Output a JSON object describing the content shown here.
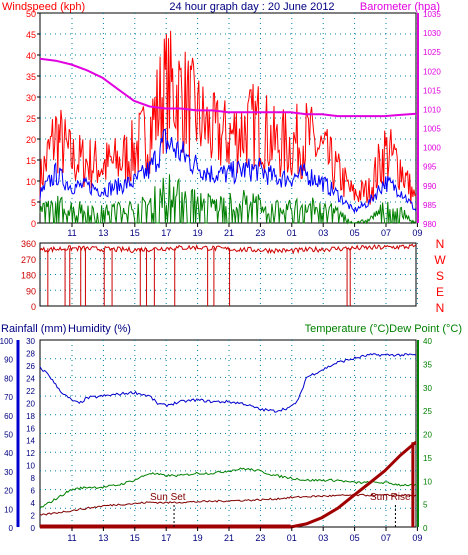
{
  "chart_data": [
    {
      "type": "line",
      "title": "24 hour graph day : 20 June 2012",
      "ylabel": "Windspeed (kph)",
      "y2label": "Barometer (hpa)",
      "x_ticks": [
        "11",
        "13",
        "15",
        "17",
        "19",
        "21",
        "23",
        "01",
        "03",
        "05",
        "07",
        "09"
      ],
      "ylim": [
        0,
        50
      ],
      "y_ticks": [
        0,
        5,
        10,
        15,
        20,
        25,
        30,
        35,
        40,
        45,
        50
      ],
      "y2lim": [
        980,
        1035
      ],
      "y2_ticks": [
        980,
        985,
        990,
        995,
        1000,
        1005,
        1010,
        1015,
        1020,
        1025,
        1030,
        1035
      ],
      "colors": {
        "gust": "#ff0000",
        "avg": "#0000ff",
        "min": "#008000",
        "baro": "#e000e0"
      },
      "series": [
        {
          "key": "gust",
          "x": [
            0,
            1,
            2,
            3,
            4,
            5,
            6,
            7,
            8,
            9,
            10,
            11,
            12,
            13,
            14,
            15,
            16,
            17,
            18,
            19,
            20,
            21,
            22,
            23,
            24
          ],
          "values": [
            12,
            25,
            18,
            17,
            16,
            17,
            20,
            26,
            38,
            36,
            30,
            25,
            24,
            26,
            28,
            22,
            22,
            24,
            20,
            14,
            8,
            9,
            20,
            16,
            6
          ]
        },
        {
          "key": "avg",
          "x": [
            0,
            1,
            2,
            3,
            4,
            5,
            6,
            7,
            8,
            9,
            10,
            11,
            12,
            13,
            14,
            15,
            16,
            17,
            18,
            19,
            20,
            21,
            22,
            23,
            24
          ],
          "values": [
            7,
            12,
            9,
            9,
            8,
            9,
            10,
            13,
            20,
            17,
            14,
            12,
            12,
            13,
            13,
            11,
            11,
            12,
            10,
            7,
            3,
            5,
            10,
            8,
            3
          ]
        },
        {
          "key": "min",
          "x": [
            0,
            1,
            2,
            3,
            4,
            5,
            6,
            7,
            8,
            9,
            10,
            11,
            12,
            13,
            14,
            15,
            16,
            17,
            18,
            19,
            20,
            21,
            22,
            23,
            24
          ],
          "values": [
            3,
            5,
            4,
            4,
            3,
            4,
            4,
            5,
            9,
            8,
            6,
            5,
            5,
            6,
            5,
            4,
            4,
            5,
            4,
            3,
            0,
            1,
            4,
            3,
            0
          ]
        },
        {
          "key": "baro",
          "axis": "y2",
          "x": [
            0,
            1,
            2,
            3,
            4,
            5,
            6,
            7,
            8,
            9,
            10,
            11,
            12,
            13,
            14,
            15,
            16,
            17,
            18,
            19,
            20,
            21,
            22,
            23,
            24
          ],
          "values": [
            1023,
            1022.5,
            1021.5,
            1020,
            1018,
            1015,
            1012,
            1010.5,
            1010,
            1010,
            1009.5,
            1009.5,
            1009,
            1009,
            1009,
            1009,
            1009,
            1008.5,
            1008.5,
            1008,
            1008,
            1008,
            1008,
            1008.3,
            1008.6
          ]
        }
      ]
    },
    {
      "type": "line",
      "ylim": [
        0,
        360
      ],
      "y_ticks": [
        0,
        90,
        180,
        270,
        360
      ],
      "y_tick_labels": [
        "0",
        "90",
        "180",
        "270",
        "360"
      ],
      "compass_labels": [
        "N",
        "W",
        "S",
        "E",
        "N"
      ],
      "color": "#cc0000",
      "series": [
        {
          "key": "direction",
          "x": [
            0,
            2,
            4,
            6,
            8,
            10,
            12,
            14,
            16,
            18,
            20,
            22,
            24
          ],
          "values": [
            320,
            330,
            325,
            320,
            330,
            335,
            325,
            320,
            315,
            325,
            330,
            335,
            340
          ]
        },
        {
          "key": "dips_to_zero",
          "x": [
            0.5,
            1.6,
            1.9,
            2.6,
            2.9,
            4.1,
            4.6,
            6.4,
            6.8,
            7.3,
            8.6,
            10.7,
            11.1,
            12.1,
            19.6,
            19.8
          ]
        }
      ]
    },
    {
      "type": "line",
      "y_left_label": "Rainfall (mm)",
      "y_mid_label": "Humidity (%)",
      "y_right_label": "Temperature (°C)Dew Point (°C)",
      "x_ticks": [
        "11",
        "13",
        "15",
        "17",
        "19",
        "21",
        "23",
        "01",
        "03",
        "05",
        "07",
        "09"
      ],
      "humidity_ticks": [
        0,
        10,
        20,
        30,
        40,
        50,
        60,
        70,
        80,
        90,
        100
      ],
      "rain_ticks": [
        0,
        2,
        4,
        6,
        8,
        10,
        12,
        14,
        16,
        18,
        20,
        22,
        24,
        26,
        28,
        30
      ],
      "temp_ticks": [
        0,
        5,
        10,
        15,
        20,
        25,
        30,
        35,
        40
      ],
      "annotations": [
        "Sun Set",
        "Sun Rise"
      ],
      "colors": {
        "humidity": "#0000cc",
        "temperature": "#008000",
        "dewpoint": "#800000",
        "rain": "#a00000"
      },
      "series": [
        {
          "key": "humidity",
          "x": [
            0,
            0.5,
            1,
            1.5,
            2,
            2.5,
            3,
            4,
            5,
            6,
            7,
            7.5,
            8,
            9,
            10,
            11,
            12,
            13,
            14,
            15,
            16,
            16.5,
            17,
            18,
            19,
            20,
            21,
            22,
            23,
            24
          ],
          "values": [
            85,
            82,
            76,
            71,
            68,
            66,
            69,
            70,
            71,
            72,
            70,
            66,
            65,
            67,
            68,
            67,
            67,
            66,
            63,
            62,
            64,
            68,
            80,
            84,
            88,
            90,
            92,
            92,
            92,
            92
          ]
        },
        {
          "key": "temperature",
          "x": [
            0,
            1,
            2,
            3,
            4,
            5,
            6,
            7,
            8,
            9,
            10,
            11,
            12,
            13,
            14,
            15,
            16,
            17,
            18,
            19,
            20,
            21,
            22,
            23,
            24
          ],
          "values": [
            4,
            6,
            8,
            8.5,
            8.5,
            9,
            10,
            11.5,
            11,
            11,
            11.5,
            11.5,
            12,
            12.5,
            12,
            11,
            10.5,
            10,
            10,
            10,
            9.5,
            9.5,
            9.5,
            9,
            9
          ]
        },
        {
          "key": "dewpoint",
          "x": [
            0,
            1,
            2,
            3,
            4,
            5,
            6,
            7,
            8,
            9,
            10,
            11,
            12,
            13,
            14,
            15,
            16,
            17,
            18,
            19,
            20,
            21,
            22,
            23,
            24
          ],
          "values": [
            2.5,
            3,
            3.5,
            4,
            4.5,
            4.8,
            5,
            5.3,
            5.2,
            5.3,
            5.4,
            5.5,
            5.6,
            5.7,
            5.8,
            6,
            6.3,
            6.5,
            6.6,
            6.7,
            6.8,
            6.8,
            6.8,
            6.8,
            6.8
          ]
        },
        {
          "key": "rain",
          "x": [
            0,
            16,
            17,
            18,
            19,
            20,
            21,
            22,
            23,
            23.7,
            24
          ],
          "values": [
            0,
            0,
            0.5,
            1.5,
            3,
            5,
            7,
            9,
            11.5,
            13,
            13.6
          ]
        }
      ]
    }
  ]
}
